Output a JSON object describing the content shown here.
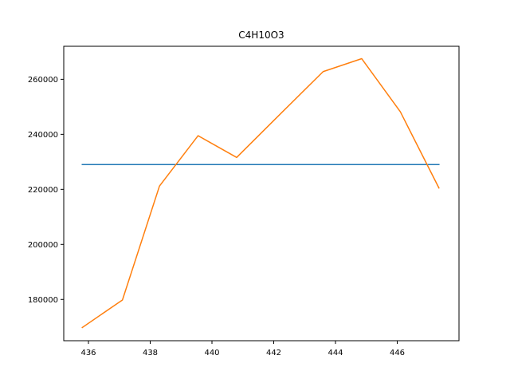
{
  "chart_data": {
    "type": "line",
    "title": "C4H10O3",
    "xlabel": "",
    "ylabel": "",
    "xlim": [
      435.2,
      448.0
    ],
    "ylim": [
      165000,
      272000
    ],
    "xticks": [
      436,
      438,
      440,
      442,
      444,
      446
    ],
    "xtick_labels": [
      "436",
      "438",
      "440",
      "442",
      "444",
      "446"
    ],
    "yticks": [
      180000,
      200000,
      220000,
      240000,
      260000
    ],
    "ytick_labels": [
      "180000",
      "200000",
      "220000",
      "240000",
      "260000"
    ],
    "grid": false,
    "series": [
      {
        "color": "#1f77b4",
        "x": [
          435.8,
          447.35
        ],
        "y": [
          229000,
          229000
        ]
      },
      {
        "color": "#ff7f0e",
        "x": [
          435.8,
          437.1,
          438.3,
          439.55,
          440.8,
          442.25,
          443.6,
          444.85,
          446.1,
          447.35
        ],
        "y": [
          169800,
          179800,
          221200,
          239500,
          231600,
          247800,
          262800,
          267500,
          248200,
          220500
        ]
      }
    ]
  }
}
